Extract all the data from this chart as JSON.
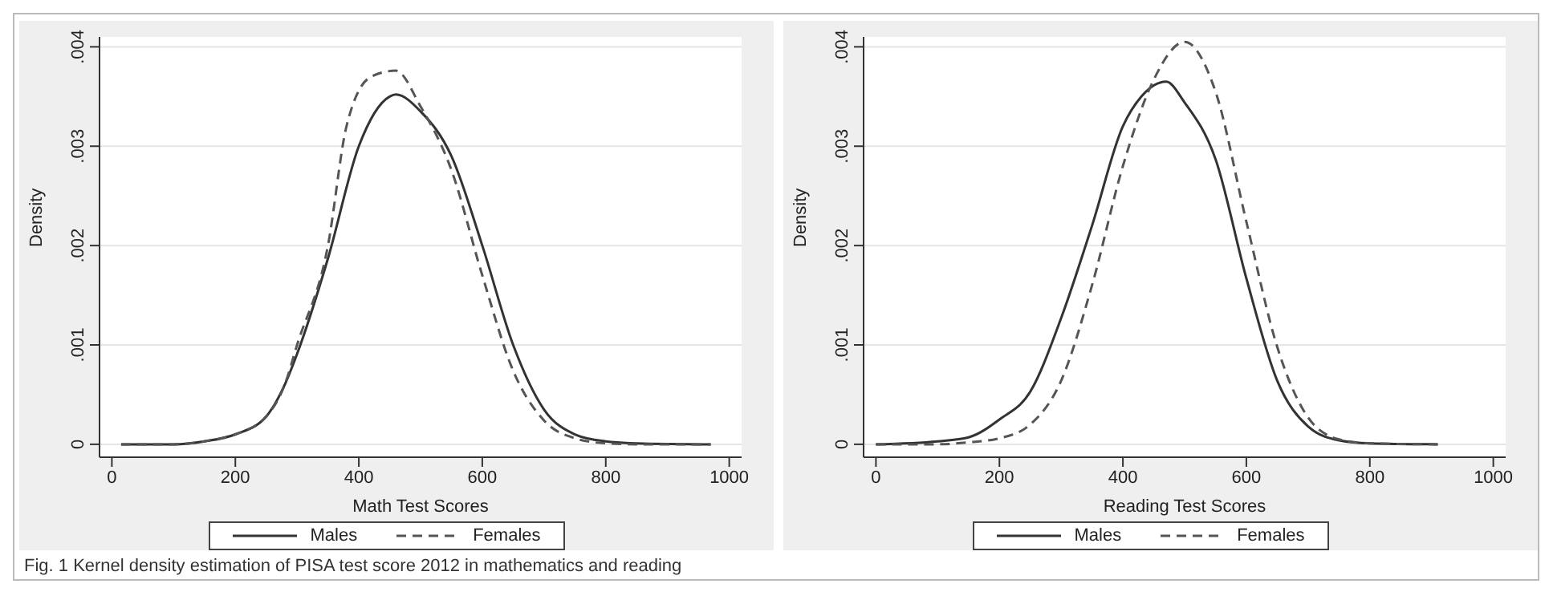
{
  "chart_data": [
    {
      "type": "line",
      "xlabel": "Math Test Scores",
      "ylabel": "Density",
      "xlim": [
        -20,
        1020
      ],
      "ylim": [
        -0.00013,
        0.0041
      ],
      "xticks": [
        0,
        200,
        400,
        600,
        800,
        1000
      ],
      "yticks": [
        0,
        {
          "value": 0.001,
          "label": ".001"
        },
        {
          "value": 0.002,
          "label": ".002"
        },
        {
          "value": 0.003,
          "label": ".003"
        },
        {
          "value": 0.004,
          "label": ".004"
        }
      ],
      "grid": "y",
      "legend": "bottom",
      "marker": "none",
      "series": [
        {
          "name": "Males",
          "color": "#333333",
          "line_style": "solid",
          "x": [
            15,
            100,
            150,
            200,
            250,
            280,
            300,
            350,
            400,
            450,
            460,
            500,
            550,
            600,
            650,
            700,
            750,
            800,
            850,
            970
          ],
          "values": [
            0,
            0,
            3e-05,
            0.0001,
            0.00028,
            0.0006,
            0.00091,
            0.00187,
            0.003,
            0.0035,
            0.00352,
            0.00335,
            0.0029,
            0.002,
            0.001,
            0.00035,
            0.0001,
            3e-05,
            1e-05,
            0
          ]
        },
        {
          "name": "Females",
          "color": "#555555",
          "line_style": "dashed",
          "x": [
            15,
            100,
            150,
            200,
            250,
            280,
            300,
            350,
            380,
            420,
            460,
            500,
            550,
            600,
            650,
            700,
            750,
            800,
            850,
            970
          ],
          "values": [
            0,
            0,
            3e-05,
            0.0001,
            0.00028,
            0.0006,
            0.001,
            0.002,
            0.0032,
            0.0037,
            0.00376,
            0.0034,
            0.00276,
            0.0017,
            0.00074,
            0.00024,
            6e-05,
            1e-05,
            0,
            0
          ]
        }
      ],
      "annotations": [
        "Fig. 1  Kernel density estimation of PISA test score 2012 in mathematics and reading"
      ]
    },
    {
      "type": "line",
      "xlabel": "Reading Test Scores",
      "ylabel": "Density",
      "xlim": [
        -20,
        1020
      ],
      "ylim": [
        -0.00013,
        0.0041
      ],
      "xticks": [
        0,
        200,
        400,
        600,
        800,
        1000
      ],
      "yticks": [
        0,
        {
          "value": 0.001,
          "label": ".001"
        },
        {
          "value": 0.002,
          "label": ".002"
        },
        {
          "value": 0.003,
          "label": ".003"
        },
        {
          "value": 0.004,
          "label": ".004"
        }
      ],
      "grid": "y",
      "legend": "bottom",
      "marker": "none",
      "series": [
        {
          "name": "Males",
          "color": "#333333",
          "line_style": "solid",
          "x": [
            0,
            100,
            150,
            200,
            250,
            300,
            350,
            400,
            430,
            470,
            500,
            550,
            600,
            650,
            700,
            750,
            800,
            910
          ],
          "values": [
            0,
            3e-05,
            7e-05,
            0.00025,
            0.00053,
            0.00127,
            0.0022,
            0.0032,
            0.0035,
            0.00365,
            0.00344,
            0.00287,
            0.00167,
            0.00064,
            0.00018,
            4e-05,
            1e-05,
            0
          ]
        },
        {
          "name": "Females",
          "color": "#555555",
          "line_style": "dashed",
          "x": [
            0,
            100,
            150,
            200,
            250,
            300,
            350,
            400,
            450,
            500,
            550,
            600,
            650,
            700,
            750,
            800,
            910
          ],
          "values": [
            0,
            0,
            2e-05,
            6e-05,
            0.0002,
            0.00064,
            0.0016,
            0.0028,
            0.00367,
            0.00405,
            0.00355,
            0.00224,
            0.00098,
            0.00027,
            5e-05,
            1e-05,
            0
          ]
        }
      ]
    }
  ]
}
